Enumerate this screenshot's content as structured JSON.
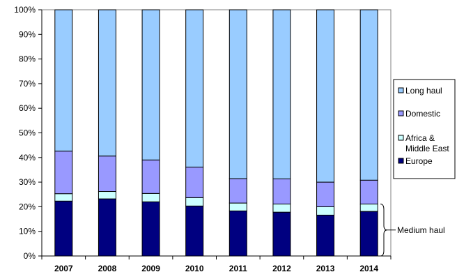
{
  "chart_data": {
    "type": "bar",
    "stacked": true,
    "percent_stacked": true,
    "categories": [
      "2007",
      "2008",
      "2009",
      "2010",
      "2011",
      "2012",
      "2013",
      "2014"
    ],
    "series": [
      {
        "name": "Europe",
        "color": "#000080",
        "values": [
          22.3,
          23.2,
          22.0,
          20.3,
          18.3,
          17.8,
          16.6,
          18.1
        ]
      },
      {
        "name": "Africa & Middle East",
        "color": "#ccffff",
        "values": [
          3.0,
          3.0,
          3.4,
          3.4,
          3.2,
          3.3,
          3.4,
          3.0
        ]
      },
      {
        "name": "Domestic",
        "color": "#9999ff",
        "values": [
          17.3,
          14.4,
          13.6,
          12.4,
          9.9,
          10.2,
          10.0,
          9.7
        ]
      },
      {
        "name": "Long haul",
        "color": "#99ccff",
        "values": [
          57.4,
          59.4,
          61.0,
          63.9,
          68.6,
          68.7,
          70.0,
          69.2
        ]
      }
    ],
    "legend_order": [
      "Long haul",
      "Domestic",
      "Africa & Middle East",
      "Europe"
    ],
    "legend_lines": {
      "Long haul": [
        "Long haul"
      ],
      "Domestic": [
        "Domestic"
      ],
      "Africa & Middle East": [
        "Africa &",
        "Middle East"
      ],
      "Europe": [
        "Europe"
      ]
    },
    "y_ticks": [
      "0%",
      "10%",
      "20%",
      "30%",
      "40%",
      "50%",
      "60%",
      "70%",
      "80%",
      "90%",
      "100%"
    ],
    "ylim": [
      0,
      100
    ],
    "grid": false,
    "legend_position": "right",
    "annotation": {
      "text": "Medium haul",
      "spans": [
        "Europe",
        "Africa & Middle East"
      ]
    }
  }
}
